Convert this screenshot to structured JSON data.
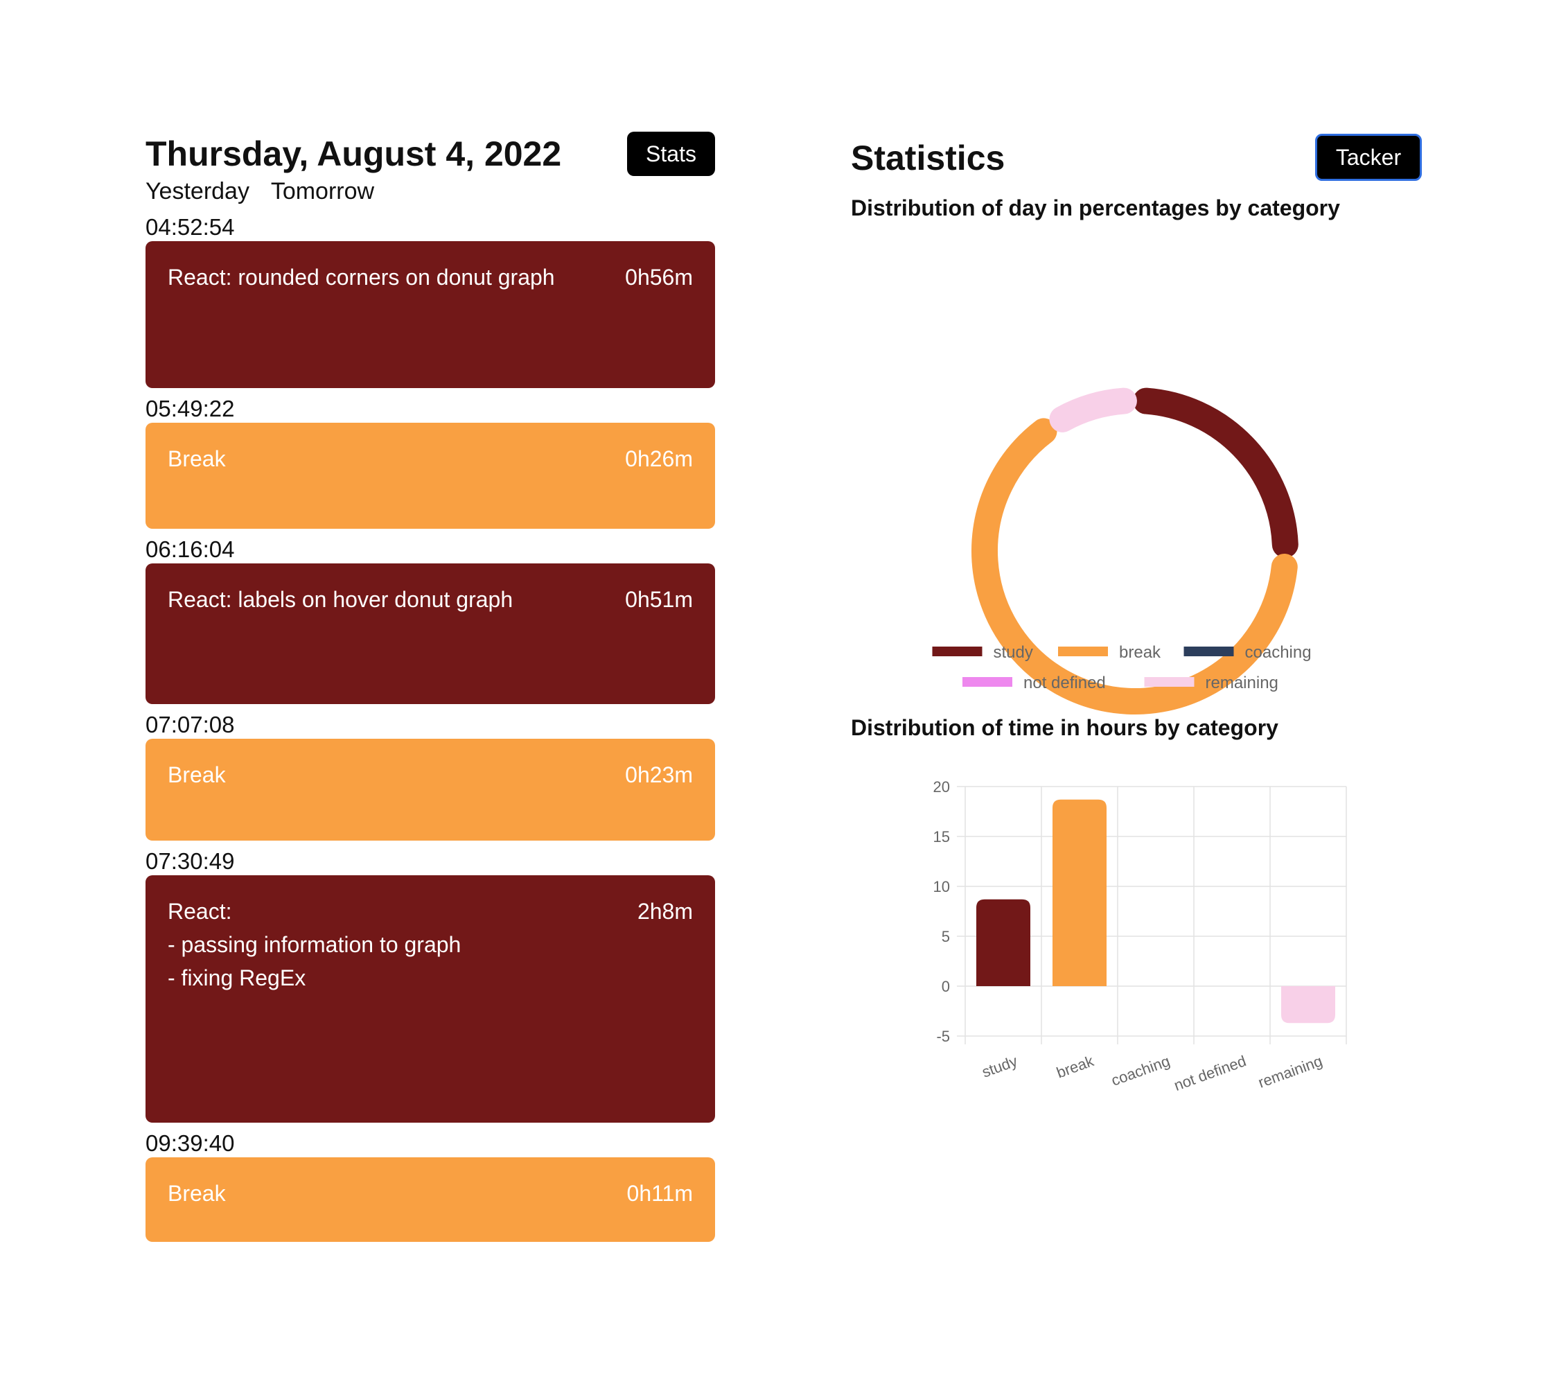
{
  "tracker": {
    "date_title": "Thursday, August 4, 2022",
    "stats_button": "Stats",
    "nav_yesterday": "Yesterday",
    "nav_tomorrow": "Tomorrow",
    "entries": [
      {
        "time": "04:52:54",
        "title": "React: rounded corners on donut graph",
        "duration": "0h56m",
        "category": "study"
      },
      {
        "time": "05:49:22",
        "title": "Break",
        "duration": "0h26m",
        "category": "break"
      },
      {
        "time": "06:16:04",
        "title": "React: labels on hover donut graph",
        "duration": "0h51m",
        "category": "study"
      },
      {
        "time": "07:07:08",
        "title": "Break",
        "duration": "0h23m",
        "category": "break"
      },
      {
        "time": "07:30:49",
        "title": "React:\n- passing information to graph\n- fixing RegEx",
        "duration": "2h8m",
        "category": "study"
      },
      {
        "time": "09:39:40",
        "title": "Break",
        "duration": "0h11m",
        "category": "break"
      }
    ]
  },
  "statistics": {
    "title": "Statistics",
    "tacker_button": "Tacker",
    "donut_title": "Distribution of day in percentages by category",
    "bar_title": "Distribution of time in hours by category"
  },
  "colors": {
    "study": "#721818",
    "break": "#f9a042",
    "coaching": "#2c3e5c",
    "not defined": "#ee88ee",
    "remaining": "#f8d0e8",
    "tacker_border": "#2f6ee0"
  },
  "chart_data": [
    {
      "type": "pie",
      "labels": [
        "study",
        "break",
        "coaching",
        "not defined",
        "remaining"
      ],
      "values": [
        25,
        64,
        0,
        0,
        9
      ],
      "legend": "bottom"
    },
    {
      "type": "bar",
      "categories": [
        "study",
        "break",
        "coaching",
        "not defined",
        "remaining"
      ],
      "values": [
        8.7,
        18.7,
        0,
        0,
        -3.7
      ],
      "ylim": [
        -5,
        20
      ],
      "yticks": [
        20,
        15,
        10,
        5,
        0,
        -5
      ],
      "grid": true,
      "legend": "none"
    }
  ]
}
